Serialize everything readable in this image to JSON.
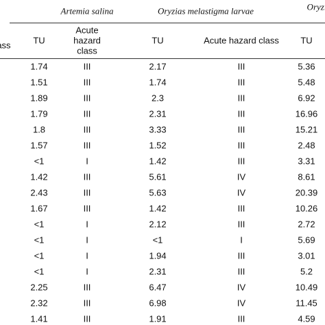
{
  "table": {
    "group_headers": [
      "Artemia salina",
      "Oryzias melastigma larvae",
      "Oryzi"
    ],
    "left_header_fragment": "lass",
    "column_headers": [
      "TU",
      "Acute hazard class",
      "TU",
      "Acute hazard class",
      "TU"
    ],
    "rows": [
      [
        "1.74",
        "III",
        "2.17",
        "III",
        "5.36"
      ],
      [
        "1.51",
        "III",
        "1.74",
        "III",
        "5.48"
      ],
      [
        "1.89",
        "III",
        "2.3",
        "III",
        "6.92"
      ],
      [
        "1.79",
        "III",
        "2.31",
        "III",
        "16.96"
      ],
      [
        "1.8",
        "III",
        "3.33",
        "III",
        "15.21"
      ],
      [
        "1.57",
        "III",
        "1.52",
        "III",
        "2.48"
      ],
      [
        "<1",
        "I",
        "1.42",
        "III",
        "3.31"
      ],
      [
        "1.42",
        "III",
        "5.61",
        "IV",
        "8.61"
      ],
      [
        "2.43",
        "III",
        "5.63",
        "IV",
        "20.39"
      ],
      [
        "1.67",
        "III",
        "1.42",
        "III",
        "10.26"
      ],
      [
        "<1",
        "I",
        "2.12",
        "III",
        "2.72"
      ],
      [
        "<1",
        "I",
        "<1",
        "I",
        "5.69"
      ],
      [
        "<1",
        "I",
        "1.94",
        "III",
        "3.01"
      ],
      [
        "<1",
        "I",
        "2.31",
        "III",
        "5.2"
      ],
      [
        "2.25",
        "III",
        "6.47",
        "IV",
        "10.49"
      ],
      [
        "2.32",
        "III",
        "6.98",
        "IV",
        "11.45"
      ],
      [
        "1.41",
        "III",
        "1.91",
        "III",
        "4.59"
      ]
    ]
  }
}
